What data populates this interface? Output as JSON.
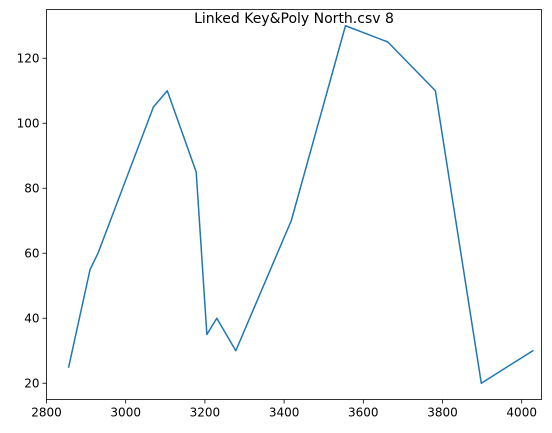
{
  "chart_data": {
    "type": "line",
    "title": "Linked Key&Poly North.csv 8",
    "xlabel": "",
    "ylabel": "",
    "xlim": [
      2800,
      4050
    ],
    "ylim": [
      15,
      135
    ],
    "xticks": [
      2800,
      3000,
      3200,
      3400,
      3600,
      3800,
      4000
    ],
    "yticks": [
      20,
      40,
      60,
      80,
      100,
      120
    ],
    "grid": false,
    "series": [
      {
        "color": "#1f77b4",
        "x": [
          2856,
          2910,
          2930,
          3070,
          3105,
          3178,
          3205,
          3230,
          3278,
          3418,
          3555,
          3662,
          3782,
          3898,
          4028
        ],
        "y": [
          25,
          55,
          60,
          105,
          110,
          85,
          35,
          40,
          30,
          70,
          130,
          125,
          110,
          20,
          30
        ]
      }
    ]
  }
}
